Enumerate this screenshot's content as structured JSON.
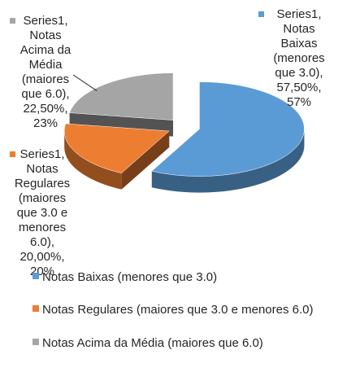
{
  "chart_data": {
    "type": "pie",
    "style": "3d-exploded",
    "series_name": "Series1",
    "categories": [
      "Notas Baixas (menores que 3.0)",
      "Notas Regulares (maiores que 3.0 e menores 6.0)",
      "Notas Acima da Média (maiores que 6.0)"
    ],
    "values": [
      57.5,
      20.0,
      22.5
    ],
    "colors": [
      "#5b9bd5",
      "#ed7d31",
      "#a5a5a5"
    ],
    "data_labels": [
      [
        "Series1,",
        "Notas",
        "Baixas",
        "(menores",
        "que 3.0),",
        "57,50%,",
        "57%"
      ],
      [
        "Series1,",
        "Notas",
        "Regulares",
        "(maiores",
        "que 3.0 e",
        "menores",
        "6.0),",
        "20,00%,",
        "20%"
      ],
      [
        "Series1,",
        "Notas",
        "Acima da",
        "Média",
        "(maiores",
        "que 6.0),",
        "22,50%,",
        "23%"
      ]
    ],
    "legend_position": "bottom"
  }
}
